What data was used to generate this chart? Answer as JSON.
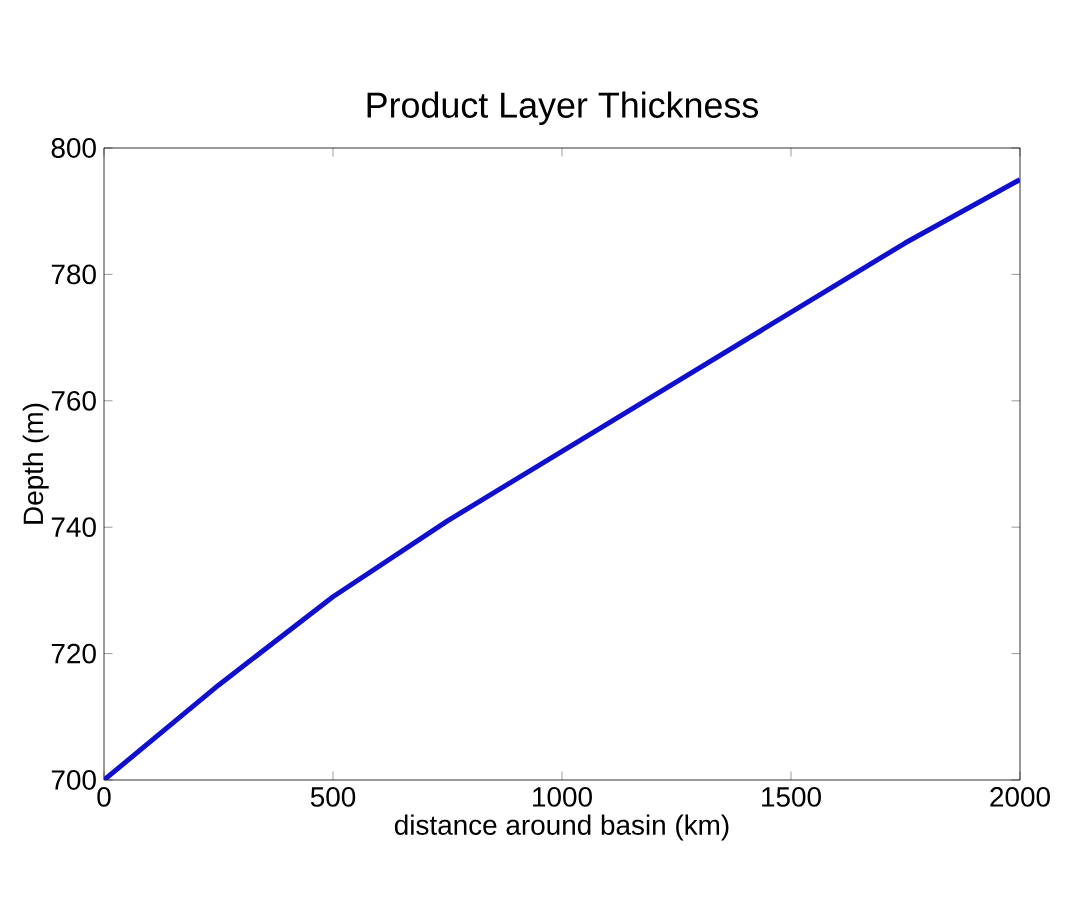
{
  "chart_data": {
    "type": "line",
    "title": "Product Layer Thickness",
    "xlabel": "distance around basin (km)",
    "ylabel": "Depth (m)",
    "x": [
      0,
      250,
      500,
      750,
      1000,
      1250,
      1500,
      1750,
      2000
    ],
    "series": [
      {
        "color": "#1010cc",
        "values": [
          700,
          715,
          729,
          741,
          752,
          763,
          774,
          785,
          795
        ]
      }
    ],
    "xlim": [
      0,
      2000
    ],
    "ylim": [
      700,
      800
    ],
    "xticks": [
      0,
      500,
      1000,
      1500,
      2000
    ],
    "yticks": [
      700,
      720,
      740,
      760,
      780,
      800
    ],
    "grid": false,
    "marker": "none",
    "line_style": "solid"
  }
}
